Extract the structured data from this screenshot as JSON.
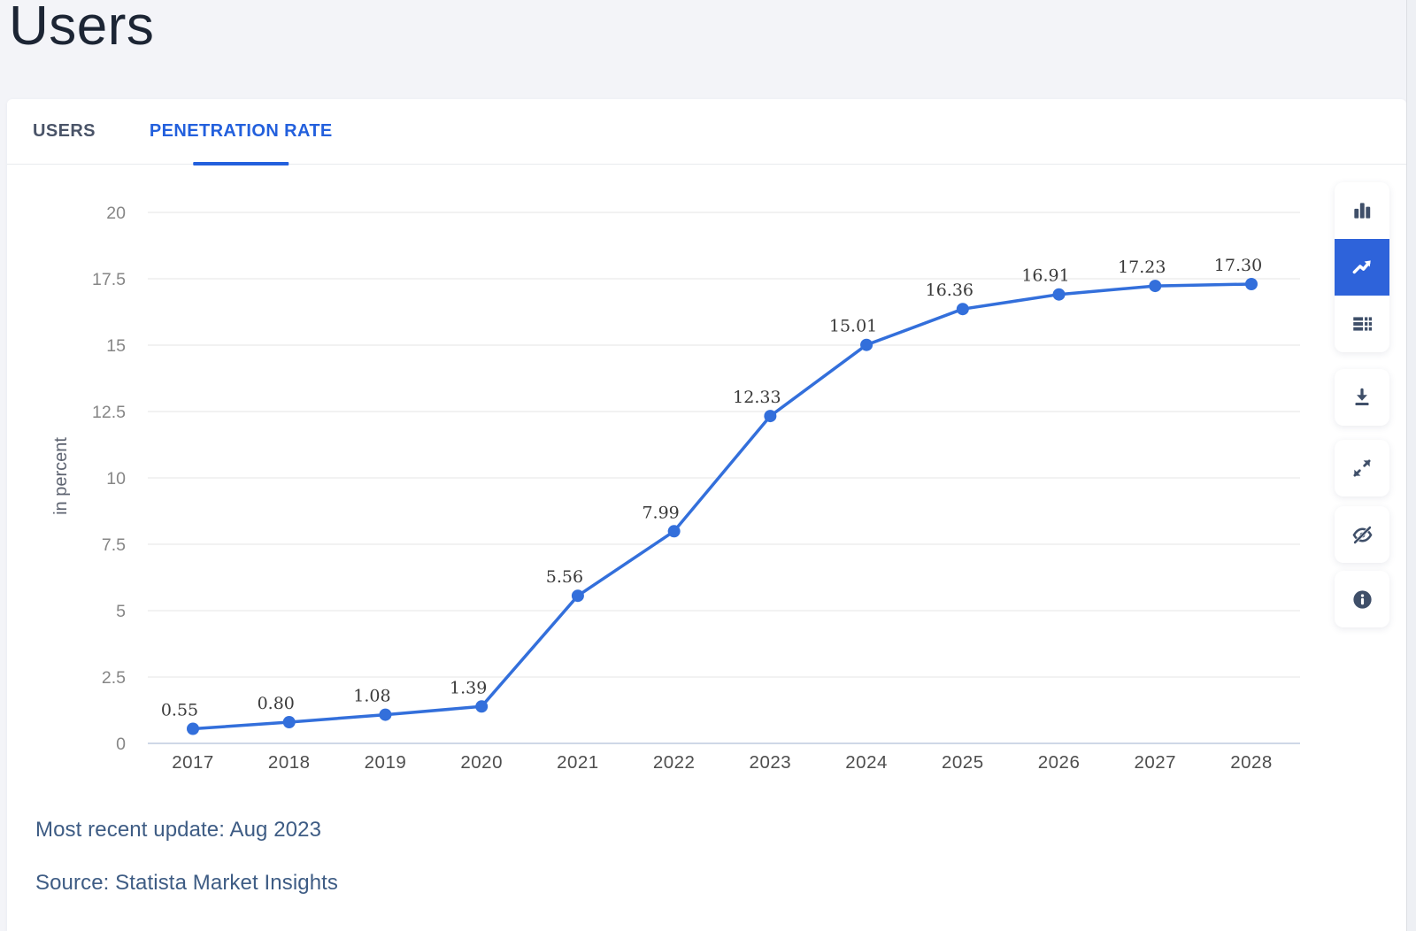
{
  "page": {
    "title": "Users"
  },
  "tabs": [
    {
      "label": "USERS",
      "active": false
    },
    {
      "label": "PENETRATION RATE",
      "active": true
    }
  ],
  "chart_data": {
    "type": "line",
    "categories": [
      "2017",
      "2018",
      "2019",
      "2020",
      "2021",
      "2022",
      "2023",
      "2024",
      "2025",
      "2026",
      "2027",
      "2028"
    ],
    "values": [
      0.55,
      0.8,
      1.08,
      1.39,
      5.56,
      7.99,
      12.33,
      15.01,
      16.36,
      16.91,
      17.23,
      17.3
    ],
    "data_labels": [
      "0.55",
      "0.80",
      "1.08",
      "1.39",
      "5.56",
      "7.99",
      "12.33",
      "15.01",
      "16.36",
      "16.91",
      "17.23",
      "17.30"
    ],
    "title": "",
    "xlabel": "",
    "ylabel": "in percent",
    "ylim": [
      0,
      20
    ],
    "yticks": [
      0,
      2.5,
      5,
      7.5,
      10,
      12.5,
      15,
      17.5,
      20
    ],
    "ytick_labels": [
      "0",
      "2.5",
      "5",
      "7.5",
      "10",
      "12.5",
      "15",
      "17.5",
      "20"
    ],
    "grid": true,
    "legend": "none",
    "line_color": "#336fdb",
    "point_color": "#336fdb",
    "grid_color": "#e6e6e6",
    "axis_line_color": "#bfcbdf",
    "tick_label_color": "#868686",
    "x_label_color": "#4e4e4e",
    "value_label_color": "#3a3a3a",
    "ylabel_color": "#5d6370"
  },
  "toolbar": {
    "buttons": [
      {
        "icon": "column-chart-icon",
        "active": false
      },
      {
        "icon": "line-chart-icon",
        "active": true
      },
      {
        "icon": "table-icon",
        "active": false
      },
      {
        "icon": "download-icon",
        "active": false
      },
      {
        "icon": "fullscreen-icon",
        "active": false
      },
      {
        "icon": "hide-eye-icon",
        "active": false
      },
      {
        "icon": "info-icon",
        "active": false
      }
    ],
    "active_color": "#2e63da",
    "icon_color": "#3f4f69"
  },
  "footer": {
    "update": "Most recent update: Aug 2023",
    "source": "Source: Statista Market Insights"
  }
}
